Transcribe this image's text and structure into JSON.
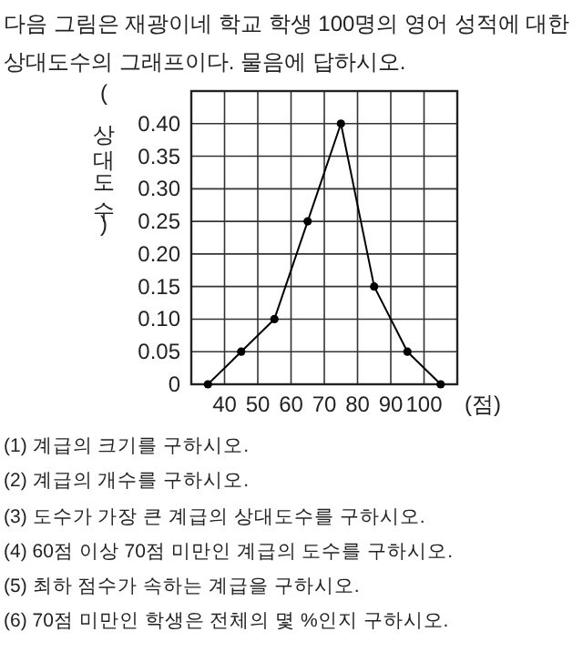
{
  "chart_data": {
    "type": "line",
    "title": "다음 그림은 재광이네 학교 학생 100명의 영어 성적에 대한 상대도수의 그래프이다. 물음에 답하시오.",
    "xlabel": "(점)",
    "ylabel": "(상대도수)",
    "x": [
      35,
      45,
      55,
      65,
      75,
      85,
      95,
      105
    ],
    "series": [
      {
        "color": "#000000",
        "values": [
          0,
          0.05,
          0.1,
          0.25,
          0.4,
          0.15,
          0.05,
          0
        ]
      }
    ],
    "xlim": [
      30,
      110
    ],
    "xticks": [
      40,
      50,
      60,
      70,
      80,
      90,
      100
    ],
    "ylim": [
      0,
      0.45
    ],
    "yticks": [
      0,
      {
        "value": 0.05,
        "label": "0.05"
      },
      {
        "value": 0.1,
        "label": "0.10"
      },
      {
        "value": 0.15,
        "label": "0.15"
      },
      {
        "value": 0.2,
        "label": "0.20"
      },
      {
        "value": 0.25,
        "label": "0.25"
      },
      {
        "value": 0.3,
        "label": "0.30"
      },
      {
        "value": 0.35,
        "label": "0.35"
      },
      {
        "value": 0.4,
        "label": "0.40"
      }
    ],
    "grid": true,
    "marker": "circle",
    "line_style": "solid",
    "annotations": [
      "(1) 계급의 크기를 구하시오.",
      "(2) 계급의 개수를 구하시오.",
      "(3) 도수가 가장 큰 계급의 상대도수를 구하시오.",
      "(4) 60점 이상 70점 미만인 계급의 도수를 구하시오.",
      "(5) 최하 점수가 속하는 계급을 구하시오.",
      "(6) 70점 미만인 학생은 전체의 몇 %인지 구하시오."
    ]
  }
}
